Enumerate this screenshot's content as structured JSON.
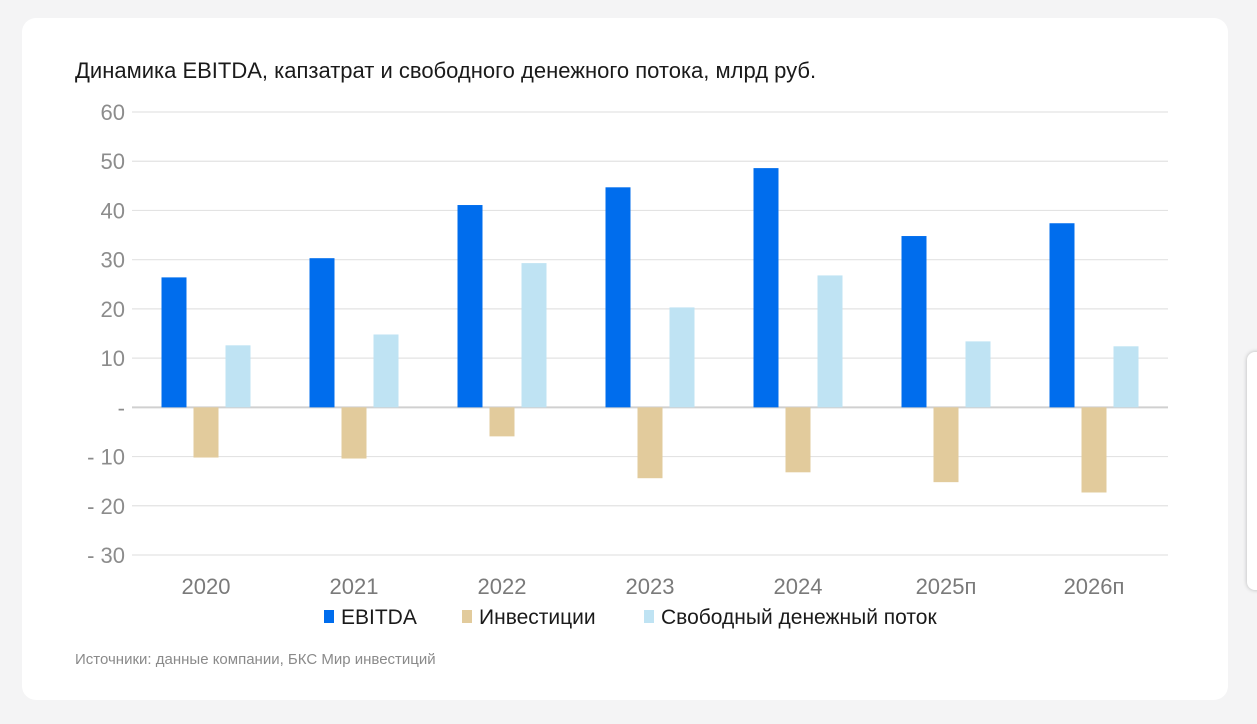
{
  "chart_data": {
    "type": "bar",
    "title": "Динамика EBITDA, капзатрат и свободного денежного потока, млрд руб.",
    "categories": [
      "2020",
      "2021",
      "2022",
      "2023",
      "2024",
      "2025п",
      "2026п"
    ],
    "series": [
      {
        "name": "EBITDA",
        "color": "#006ded",
        "values": [
          26.4,
          30.3,
          41.1,
          44.7,
          48.6,
          34.8,
          37.4
        ]
      },
      {
        "name": "Инвестиции",
        "color": "#e2cb9c",
        "values": [
          -10.2,
          -10.4,
          -5.9,
          -14.4,
          -13.2,
          -15.2,
          -17.3
        ]
      },
      {
        "name": "Свободный денежный поток",
        "color": "#bfe3f3",
        "values": [
          12.6,
          14.8,
          29.3,
          20.3,
          26.8,
          13.4,
          12.4
        ]
      }
    ],
    "yticks": [
      "60",
      "50",
      "40",
      "30",
      "20",
      "10",
      "-",
      "- 10",
      "- 20",
      "- 30"
    ],
    "ytick_values": [
      60,
      50,
      40,
      30,
      20,
      10,
      0,
      -10,
      -20,
      -30
    ],
    "ylim": [
      -30,
      60
    ],
    "xlabel": "",
    "ylabel": "",
    "grid": true,
    "legend": "bottom"
  },
  "source": "Источники: данные компании, БКС Мир инвестиций"
}
